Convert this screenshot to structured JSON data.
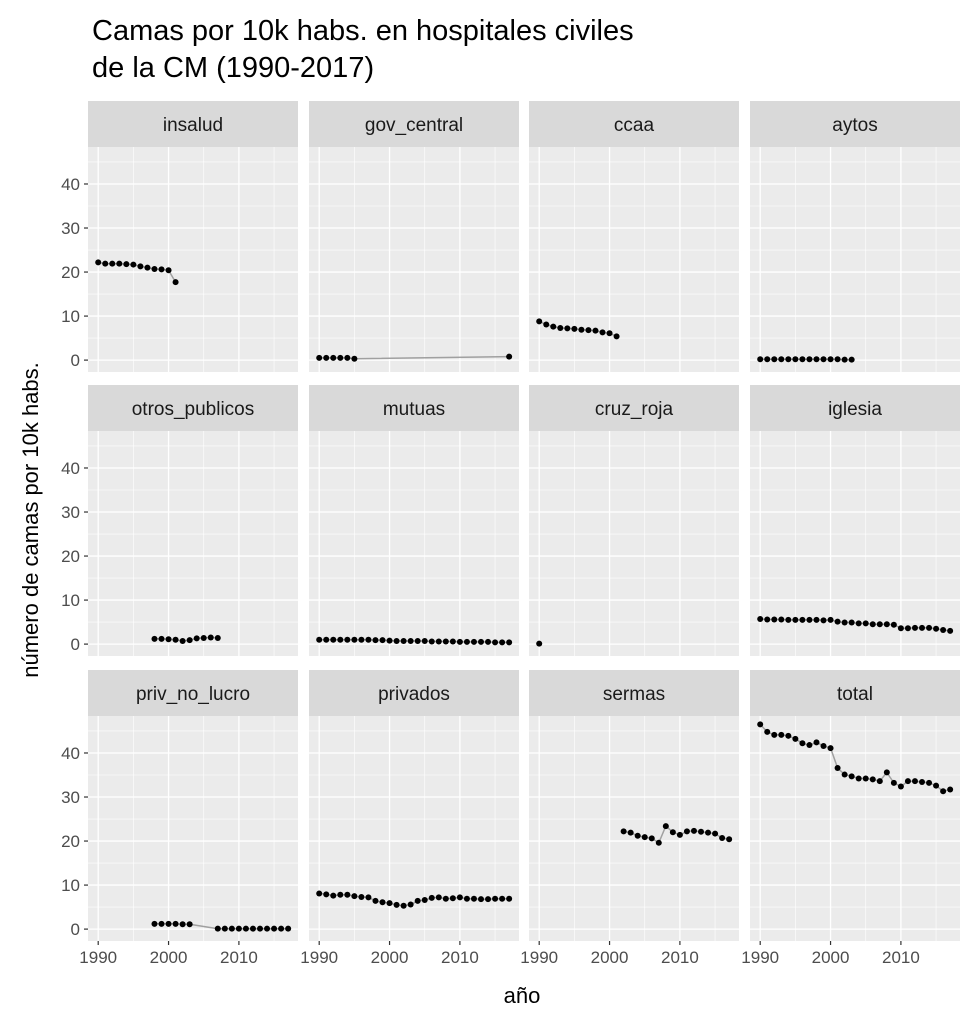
{
  "chart_data": {
    "type": "line",
    "title": [
      "Camas por 10k habs. en hospitales civiles",
      "de la CM (1990-2017)"
    ],
    "xlabel": "año",
    "ylabel": "número de camas por 10k habs.",
    "xlim": [
      1988.55,
      2018.4
    ],
    "ylim": [
      -2.7,
      48.4
    ],
    "x_ticks": [
      1990,
      2000,
      2010
    ],
    "y_ticks": [
      0,
      10,
      20,
      30,
      40
    ],
    "grid": true,
    "line_color": "#a0a0a0",
    "point_color": "#000000",
    "panel_bg": "#EBEBEB",
    "strip_bg": "#D9D9D9",
    "panels": [
      {
        "name": "insalud",
        "x": [
          1990,
          1991,
          1992,
          1993,
          1994,
          1995,
          1996,
          1997,
          1998,
          1999,
          2000,
          2001
        ],
        "y": [
          22.2,
          21.9,
          21.9,
          21.9,
          21.8,
          21.7,
          21.3,
          21.0,
          20.7,
          20.6,
          20.4,
          17.7
        ]
      },
      {
        "name": "gov_central",
        "x": [
          1990,
          1991,
          1992,
          1993,
          1994,
          1995,
          2017
        ],
        "y": [
          0.5,
          0.5,
          0.5,
          0.5,
          0.5,
          0.3,
          0.8
        ]
      },
      {
        "name": "ccaa",
        "x": [
          1990,
          1991,
          1992,
          1993,
          1994,
          1995,
          1996,
          1997,
          1998,
          1999,
          2000,
          2001
        ],
        "y": [
          8.8,
          8.1,
          7.6,
          7.3,
          7.2,
          7.1,
          6.9,
          6.8,
          6.7,
          6.3,
          6.1,
          5.4
        ]
      },
      {
        "name": "aytos",
        "x": [
          1990,
          1991,
          1992,
          1993,
          1994,
          1995,
          1996,
          1997,
          1998,
          1999,
          2000,
          2001,
          2002,
          2003
        ],
        "y": [
          0.2,
          0.2,
          0.2,
          0.2,
          0.2,
          0.2,
          0.2,
          0.2,
          0.2,
          0.2,
          0.2,
          0.2,
          0.1,
          0.1
        ]
      },
      {
        "name": "otros_publicos",
        "x": [
          1998,
          1999,
          2000,
          2001,
          2002,
          2003,
          2004,
          2005,
          2006,
          2007
        ],
        "y": [
          1.2,
          1.2,
          1.1,
          1.0,
          0.7,
          0.9,
          1.3,
          1.4,
          1.5,
          1.4
        ]
      },
      {
        "name": "mutuas",
        "x": [
          1990,
          1991,
          1992,
          1993,
          1994,
          1995,
          1996,
          1997,
          1998,
          1999,
          2000,
          2001,
          2002,
          2003,
          2004,
          2005,
          2006,
          2007,
          2008,
          2009,
          2010,
          2011,
          2012,
          2013,
          2014,
          2015,
          2016,
          2017
        ],
        "y": [
          1.0,
          1.0,
          1.0,
          1.0,
          1.0,
          1.0,
          1.0,
          1.0,
          0.9,
          0.9,
          0.8,
          0.7,
          0.7,
          0.7,
          0.7,
          0.7,
          0.6,
          0.6,
          0.6,
          0.6,
          0.5,
          0.5,
          0.5,
          0.5,
          0.5,
          0.4,
          0.4,
          0.4
        ]
      },
      {
        "name": "cruz_roja",
        "x": [
          1990
        ],
        "y": [
          0.1
        ]
      },
      {
        "name": "iglesia",
        "x": [
          1990,
          1991,
          1992,
          1993,
          1994,
          1995,
          1996,
          1997,
          1998,
          1999,
          2000,
          2001,
          2002,
          2003,
          2004,
          2005,
          2006,
          2007,
          2008,
          2009,
          2010,
          2011,
          2012,
          2013,
          2014,
          2015,
          2016,
          2017
        ],
        "y": [
          5.7,
          5.6,
          5.6,
          5.6,
          5.5,
          5.5,
          5.5,
          5.5,
          5.5,
          5.4,
          5.5,
          5.1,
          4.9,
          4.9,
          4.7,
          4.7,
          4.5,
          4.5,
          4.5,
          4.4,
          3.6,
          3.6,
          3.7,
          3.7,
          3.7,
          3.5,
          3.2,
          3.0
        ]
      },
      {
        "name": "priv_no_lucro",
        "x": [
          1998,
          1999,
          2000,
          2001,
          2002,
          2003,
          2007,
          2008,
          2009,
          2010,
          2011,
          2012,
          2013,
          2014,
          2015,
          2016,
          2017
        ],
        "y": [
          1.2,
          1.2,
          1.2,
          1.2,
          1.1,
          1.1,
          0.1,
          0.1,
          0.1,
          0.1,
          0.1,
          0.1,
          0.1,
          0.1,
          0.1,
          0.1,
          0.1
        ]
      },
      {
        "name": "privados",
        "x": [
          1990,
          1991,
          1992,
          1993,
          1994,
          1995,
          1996,
          1997,
          1998,
          1999,
          2000,
          2001,
          2002,
          2003,
          2004,
          2005,
          2006,
          2007,
          2008,
          2009,
          2010,
          2011,
          2012,
          2013,
          2014,
          2015,
          2016,
          2017
        ],
        "y": [
          8.1,
          7.9,
          7.6,
          7.8,
          7.8,
          7.5,
          7.3,
          7.2,
          6.4,
          6.1,
          5.9,
          5.5,
          5.3,
          5.6,
          6.4,
          6.6,
          7.1,
          7.2,
          6.9,
          7.0,
          7.2,
          6.9,
          6.9,
          6.8,
          6.8,
          6.9,
          6.9,
          6.9
        ]
      },
      {
        "name": "sermas",
        "x": [
          2002,
          2003,
          2004,
          2005,
          2006,
          2007,
          2008,
          2009,
          2010,
          2011,
          2012,
          2013,
          2014,
          2015,
          2016,
          2017
        ],
        "y": [
          22.2,
          21.9,
          21.2,
          20.9,
          20.6,
          19.6,
          23.4,
          22.0,
          21.4,
          22.2,
          22.3,
          22.1,
          21.9,
          21.7,
          20.7,
          20.4
        ]
      },
      {
        "name": "total",
        "x": [
          1990,
          1991,
          1992,
          1993,
          1994,
          1995,
          1996,
          1997,
          1998,
          1999,
          2000,
          2001,
          2002,
          2003,
          2004,
          2005,
          2006,
          2007,
          2008,
          2009,
          2010,
          2011,
          2012,
          2013,
          2014,
          2015,
          2016,
          2017
        ],
        "y": [
          46.5,
          44.8,
          44.1,
          44.1,
          43.9,
          43.2,
          42.2,
          41.8,
          42.4,
          41.6,
          41.1,
          36.6,
          35.1,
          34.7,
          34.2,
          34.2,
          34.0,
          33.6,
          35.6,
          33.2,
          32.4,
          33.6,
          33.6,
          33.4,
          33.2,
          32.6,
          31.3,
          31.7
        ]
      }
    ]
  }
}
